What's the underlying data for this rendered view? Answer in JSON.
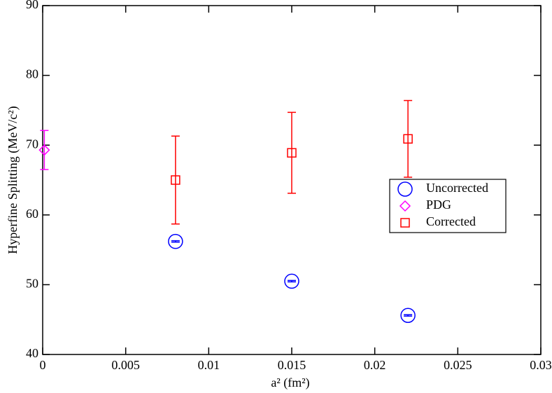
{
  "chart_data": {
    "type": "scatter",
    "x_label": "a² (fm²)",
    "y_label": "Hyperfine Splitting (MeV/c²)",
    "xlim": [
      0,
      0.03
    ],
    "xticks": [
      0,
      0.005,
      0.01,
      0.015,
      0.02,
      0.025,
      0.03
    ],
    "ylim": [
      40,
      90
    ],
    "yticks": [
      40,
      50,
      60,
      70,
      80,
      90
    ],
    "legend": "right",
    "series": [
      {
        "name": "Uncorrected",
        "color": "#0000ff",
        "marker": "circle",
        "x": [
          0.008,
          0.015,
          0.022
        ],
        "values": [
          56.2,
          50.5,
          45.6
        ],
        "errors": [
          0.1,
          0.1,
          0.1
        ]
      },
      {
        "name": "PDG",
        "color": "#ff00ff",
        "marker": "diamond",
        "x": [
          0.0001
        ],
        "values": [
          69.3
        ],
        "errors": [
          2.8
        ]
      },
      {
        "name": "Corrected",
        "color": "#ff0000",
        "marker": "square",
        "x": [
          0.008,
          0.015,
          0.022
        ],
        "values": [
          65.0,
          68.9,
          70.9
        ],
        "errors": [
          6.3,
          5.8,
          5.5
        ]
      }
    ]
  }
}
